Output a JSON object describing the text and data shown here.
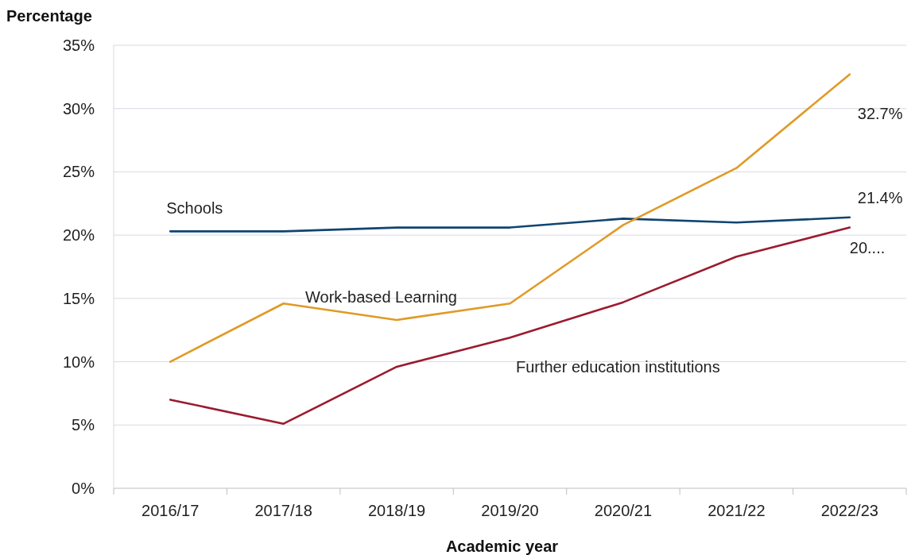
{
  "chart_data": {
    "type": "line",
    "ylabel": "Percentage",
    "xlabel": "Academic year",
    "categories": [
      "2016/17",
      "2017/18",
      "2018/19",
      "2019/20",
      "2020/21",
      "2021/22",
      "2022/23"
    ],
    "ylim": [
      0,
      35
    ],
    "yticks": [
      {
        "value": 0,
        "label": "0%"
      },
      {
        "value": 5,
        "label": "5%"
      },
      {
        "value": 10,
        "label": "10%"
      },
      {
        "value": 15,
        "label": "15%"
      },
      {
        "value": 20,
        "label": "20%"
      },
      {
        "value": 25,
        "label": "25%"
      },
      {
        "value": 30,
        "label": "30%"
      },
      {
        "value": 35,
        "label": "35%"
      }
    ],
    "grid": "y",
    "marker": "none",
    "line_style": "solid",
    "series": [
      {
        "name": "Schools",
        "color": "#0f4470",
        "values": [
          20.3,
          20.3,
          20.6,
          20.6,
          21.3,
          21.0,
          21.4
        ],
        "value_labels": [
          null,
          null,
          null,
          null,
          null,
          null,
          "21.4%"
        ]
      },
      {
        "name": "Work-based Learning",
        "color": "#e09a26",
        "values": [
          10.0,
          14.6,
          13.3,
          14.6,
          20.8,
          25.3,
          32.7
        ],
        "value_labels": [
          null,
          null,
          null,
          null,
          null,
          null,
          "32.7%"
        ]
      },
      {
        "name": "Further education institutions",
        "color": "#9b1b30",
        "values": [
          7.0,
          5.1,
          9.6,
          11.9,
          14.7,
          18.3,
          20.6
        ],
        "value_labels": [
          null,
          null,
          null,
          null,
          null,
          null,
          "20...."
        ]
      }
    ]
  }
}
